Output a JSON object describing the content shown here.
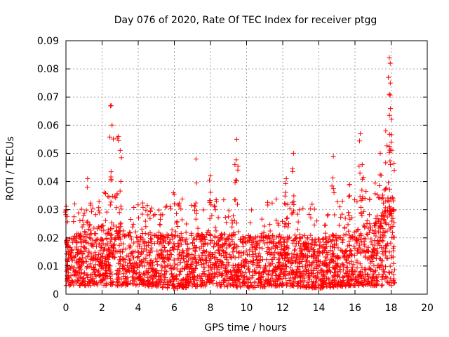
{
  "chart_data": {
    "type": "scatter",
    "title": "Day 076 of 2020, Rate Of TEC Index for receiver ptgg",
    "xlabel": "GPS time / hours",
    "ylabel": "ROTI / TECUs",
    "xlim": [
      0,
      20
    ],
    "ylim": [
      0,
      0.09
    ],
    "xticks": [
      0,
      2,
      4,
      6,
      8,
      10,
      12,
      14,
      16,
      18,
      20
    ],
    "yticks": [
      0,
      0.01,
      0.02,
      0.03,
      0.04,
      0.05,
      0.06,
      0.07,
      0.08,
      0.09
    ],
    "grid": true,
    "marker": "+",
    "color": "#ff0000",
    "data_range_x": [
      0,
      18.2
    ],
    "notable_points": [
      {
        "x": 0.0,
        "y": 0.03
      },
      {
        "x": 1.2,
        "y": 0.041
      },
      {
        "x": 2.5,
        "y": 0.067
      },
      {
        "x": 2.55,
        "y": 0.06
      },
      {
        "x": 2.9,
        "y": 0.056
      },
      {
        "x": 3.0,
        "y": 0.051
      },
      {
        "x": 5.95,
        "y": 0.036
      },
      {
        "x": 7.2,
        "y": 0.048
      },
      {
        "x": 8.0,
        "y": 0.042
      },
      {
        "x": 9.45,
        "y": 0.055
      },
      {
        "x": 9.35,
        "y": 0.046
      },
      {
        "x": 12.6,
        "y": 0.05
      },
      {
        "x": 12.2,
        "y": 0.041
      },
      {
        "x": 14.8,
        "y": 0.049
      },
      {
        "x": 15.7,
        "y": 0.039
      },
      {
        "x": 16.3,
        "y": 0.057
      },
      {
        "x": 16.4,
        "y": 0.046
      },
      {
        "x": 17.4,
        "y": 0.05
      },
      {
        "x": 17.7,
        "y": 0.058
      },
      {
        "x": 17.9,
        "y": 0.084
      },
      {
        "x": 17.95,
        "y": 0.082
      },
      {
        "x": 17.85,
        "y": 0.077
      },
      {
        "x": 17.9,
        "y": 0.071
      },
      {
        "x": 18.0,
        "y": 0.054
      }
    ],
    "band_profile": [
      {
        "x": 0,
        "low": 0.003,
        "high": 0.02
      },
      {
        "x": 2,
        "low": 0.003,
        "high": 0.025
      },
      {
        "x": 4,
        "low": 0.003,
        "high": 0.021
      },
      {
        "x": 6,
        "low": 0.002,
        "high": 0.022
      },
      {
        "x": 8,
        "low": 0.003,
        "high": 0.022
      },
      {
        "x": 10,
        "low": 0.002,
        "high": 0.021
      },
      {
        "x": 12,
        "low": 0.003,
        "high": 0.022
      },
      {
        "x": 14,
        "low": 0.002,
        "high": 0.02
      },
      {
        "x": 16,
        "low": 0.003,
        "high": 0.022
      },
      {
        "x": 17.5,
        "low": 0.003,
        "high": 0.03
      },
      {
        "x": 18.2,
        "low": 0.003,
        "high": 0.035
      }
    ]
  }
}
